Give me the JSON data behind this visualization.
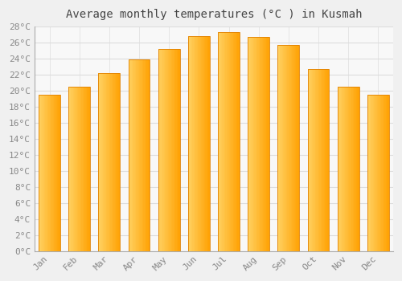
{
  "title": "Average monthly temperatures (°C ) in Kusmah",
  "months": [
    "Jan",
    "Feb",
    "Mar",
    "Apr",
    "May",
    "Jun",
    "Jul",
    "Aug",
    "Sep",
    "Oct",
    "Nov",
    "Dec"
  ],
  "values": [
    19.5,
    20.5,
    22.2,
    23.9,
    25.2,
    26.8,
    27.3,
    26.7,
    25.7,
    22.7,
    20.5,
    19.5
  ],
  "bar_color_left": "#FFD060",
  "bar_color_right": "#FFA000",
  "bar_edge_color": "#E08000",
  "ylim": [
    0,
    28
  ],
  "ytick_step": 2,
  "background_color": "#F0F0F0",
  "plot_bg_color": "#F8F8F8",
  "grid_color": "#DDDDDD",
  "title_fontsize": 10,
  "tick_fontsize": 8,
  "title_font_family": "monospace",
  "tick_font_family": "monospace",
  "tick_color": "#888888",
  "title_color": "#444444"
}
